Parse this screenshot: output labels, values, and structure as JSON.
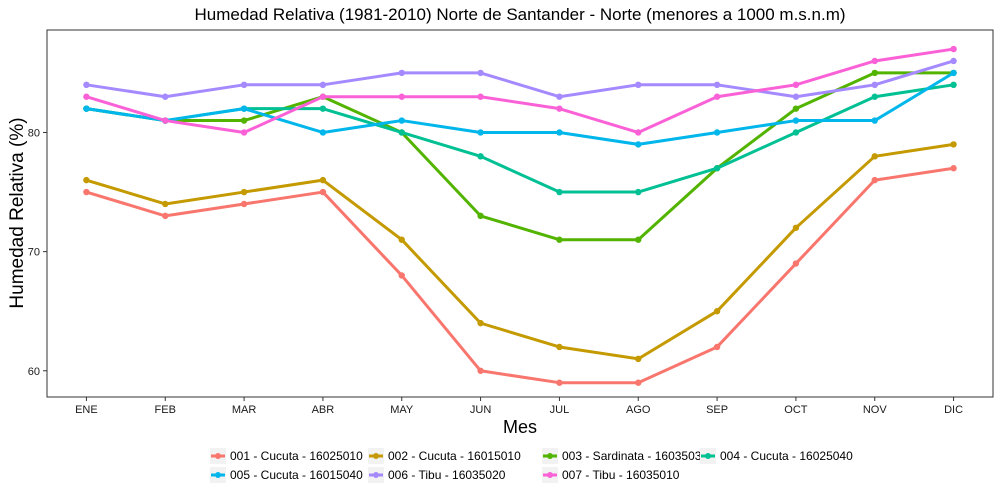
{
  "chart_data": {
    "type": "line",
    "title": "Humedad Relativa (1981-2010) Norte de Santander - Norte (menores a 1000 m.s.n.m)",
    "xlabel": "Mes",
    "ylabel": "Humedad Relativa (%)",
    "categories": [
      "ENE",
      "FEB",
      "MAR",
      "ABR",
      "MAY",
      "JUN",
      "JUL",
      "AGO",
      "SEP",
      "OCT",
      "NOV",
      "DIC"
    ],
    "ylim": [
      57.8,
      88.6
    ],
    "yticks": [
      60,
      70,
      80
    ],
    "grid": false,
    "legend_position": "bottom",
    "series": [
      {
        "name": "001 - Cucuta - 16025010",
        "color": "#F8766D",
        "values": [
          75,
          73,
          74,
          75,
          68,
          60,
          59,
          59,
          62,
          69,
          76,
          77
        ]
      },
      {
        "name": "002 - Cucuta - 16015010",
        "color": "#C49A00",
        "values": [
          76,
          74,
          75,
          76,
          71,
          64,
          62,
          61,
          65,
          72,
          78,
          79
        ]
      },
      {
        "name": "003 - Sardinata - 16035030",
        "color": "#53B400",
        "values": [
          82,
          81,
          81,
          83,
          80,
          73,
          71,
          71,
          77,
          82,
          85,
          85
        ]
      },
      {
        "name": "004 - Cucuta - 16025040",
        "color": "#00C094",
        "values": [
          82,
          81,
          82,
          82,
          80,
          78,
          75,
          75,
          77,
          80,
          83,
          84
        ]
      },
      {
        "name": "005 - Cucuta - 16015040",
        "color": "#00B6EB",
        "values": [
          82,
          81,
          82,
          80,
          81,
          80,
          80,
          79,
          80,
          81,
          81,
          85
        ]
      },
      {
        "name": "006 - Tibu - 16035020",
        "color": "#A58AFF",
        "values": [
          84,
          83,
          84,
          84,
          85,
          85,
          83,
          84,
          84,
          83,
          84,
          86
        ]
      },
      {
        "name": "007 - Tibu - 16035010",
        "color": "#FB61D7",
        "values": [
          83,
          81,
          80,
          83,
          83,
          83,
          82,
          80,
          83,
          84,
          86,
          87
        ]
      }
    ]
  }
}
